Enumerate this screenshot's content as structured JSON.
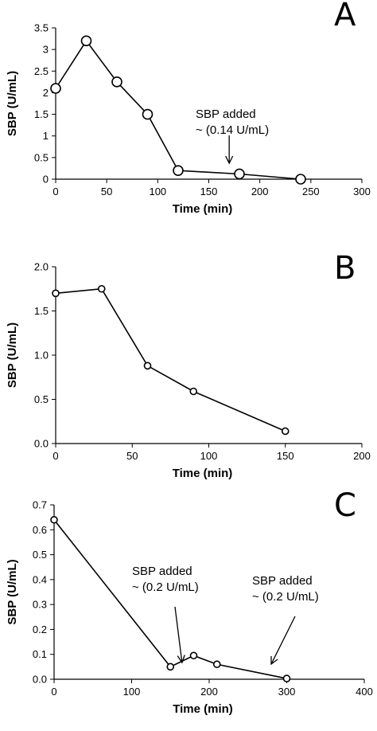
{
  "chart_data": [
    {
      "type": "line",
      "panel_label": "A",
      "xlabel": "Time (min)",
      "ylabel": "SBP (U/mL)",
      "xlim": [
        0,
        300
      ],
      "ylim": [
        0,
        3.5
      ],
      "x_ticks": [
        "0",
        "50",
        "100",
        "150",
        "200",
        "250",
        "300"
      ],
      "y_ticks": [
        "0",
        "0.5",
        "1",
        "1.5",
        "2",
        "2.5",
        "3",
        "3.5"
      ],
      "grid": false,
      "legend": "none",
      "series": [
        {
          "x": [
            0,
            30,
            60,
            90,
            120,
            180,
            240
          ],
          "values": [
            2.1,
            3.2,
            2.25,
            1.5,
            0.2,
            0.12,
            0.0
          ]
        }
      ],
      "annotations": [
        {
          "lines": [
            "SBP added",
            "~ (0.14 U/mL)"
          ],
          "arrow_x": 170
        }
      ]
    },
    {
      "type": "line",
      "panel_label": "B",
      "xlabel": "Time (min)",
      "ylabel": "SBP (U/mL)",
      "xlim": [
        0,
        200
      ],
      "ylim": [
        0,
        2.0
      ],
      "x_ticks": [
        "0",
        "50",
        "100",
        "150",
        "200"
      ],
      "y_ticks": [
        "0.0",
        "0.5",
        "1.0",
        "1.5",
        "2.0"
      ],
      "grid": false,
      "legend": "none",
      "series": [
        {
          "x": [
            0,
            30,
            60,
            90,
            150
          ],
          "values": [
            1.7,
            1.75,
            0.88,
            0.59,
            0.14
          ]
        }
      ],
      "annotations": []
    },
    {
      "type": "line",
      "panel_label": "C",
      "xlabel": "Time (min)",
      "ylabel": "SBP (U/mL)",
      "xlim": [
        0,
        400
      ],
      "ylim": [
        0,
        0.7
      ],
      "x_ticks": [
        "0",
        "100",
        "200",
        "300",
        "400"
      ],
      "y_ticks": [
        "0.0",
        "0.1",
        "0.2",
        "0.3",
        "0.4",
        "0.5",
        "0.6",
        "0.7"
      ],
      "grid": false,
      "legend": "none",
      "series": [
        {
          "x": [
            0,
            150,
            180,
            210,
            300
          ],
          "values": [
            0.64,
            0.05,
            0.095,
            0.06,
            0.003
          ]
        }
      ],
      "annotations": [
        {
          "lines": [
            "SBP added",
            "~ (0.2 U/mL)"
          ],
          "arrow_x": 165
        },
        {
          "lines": [
            "SBP added",
            "~ (0.2 U/mL)"
          ],
          "arrow_x": 280
        }
      ]
    }
  ]
}
